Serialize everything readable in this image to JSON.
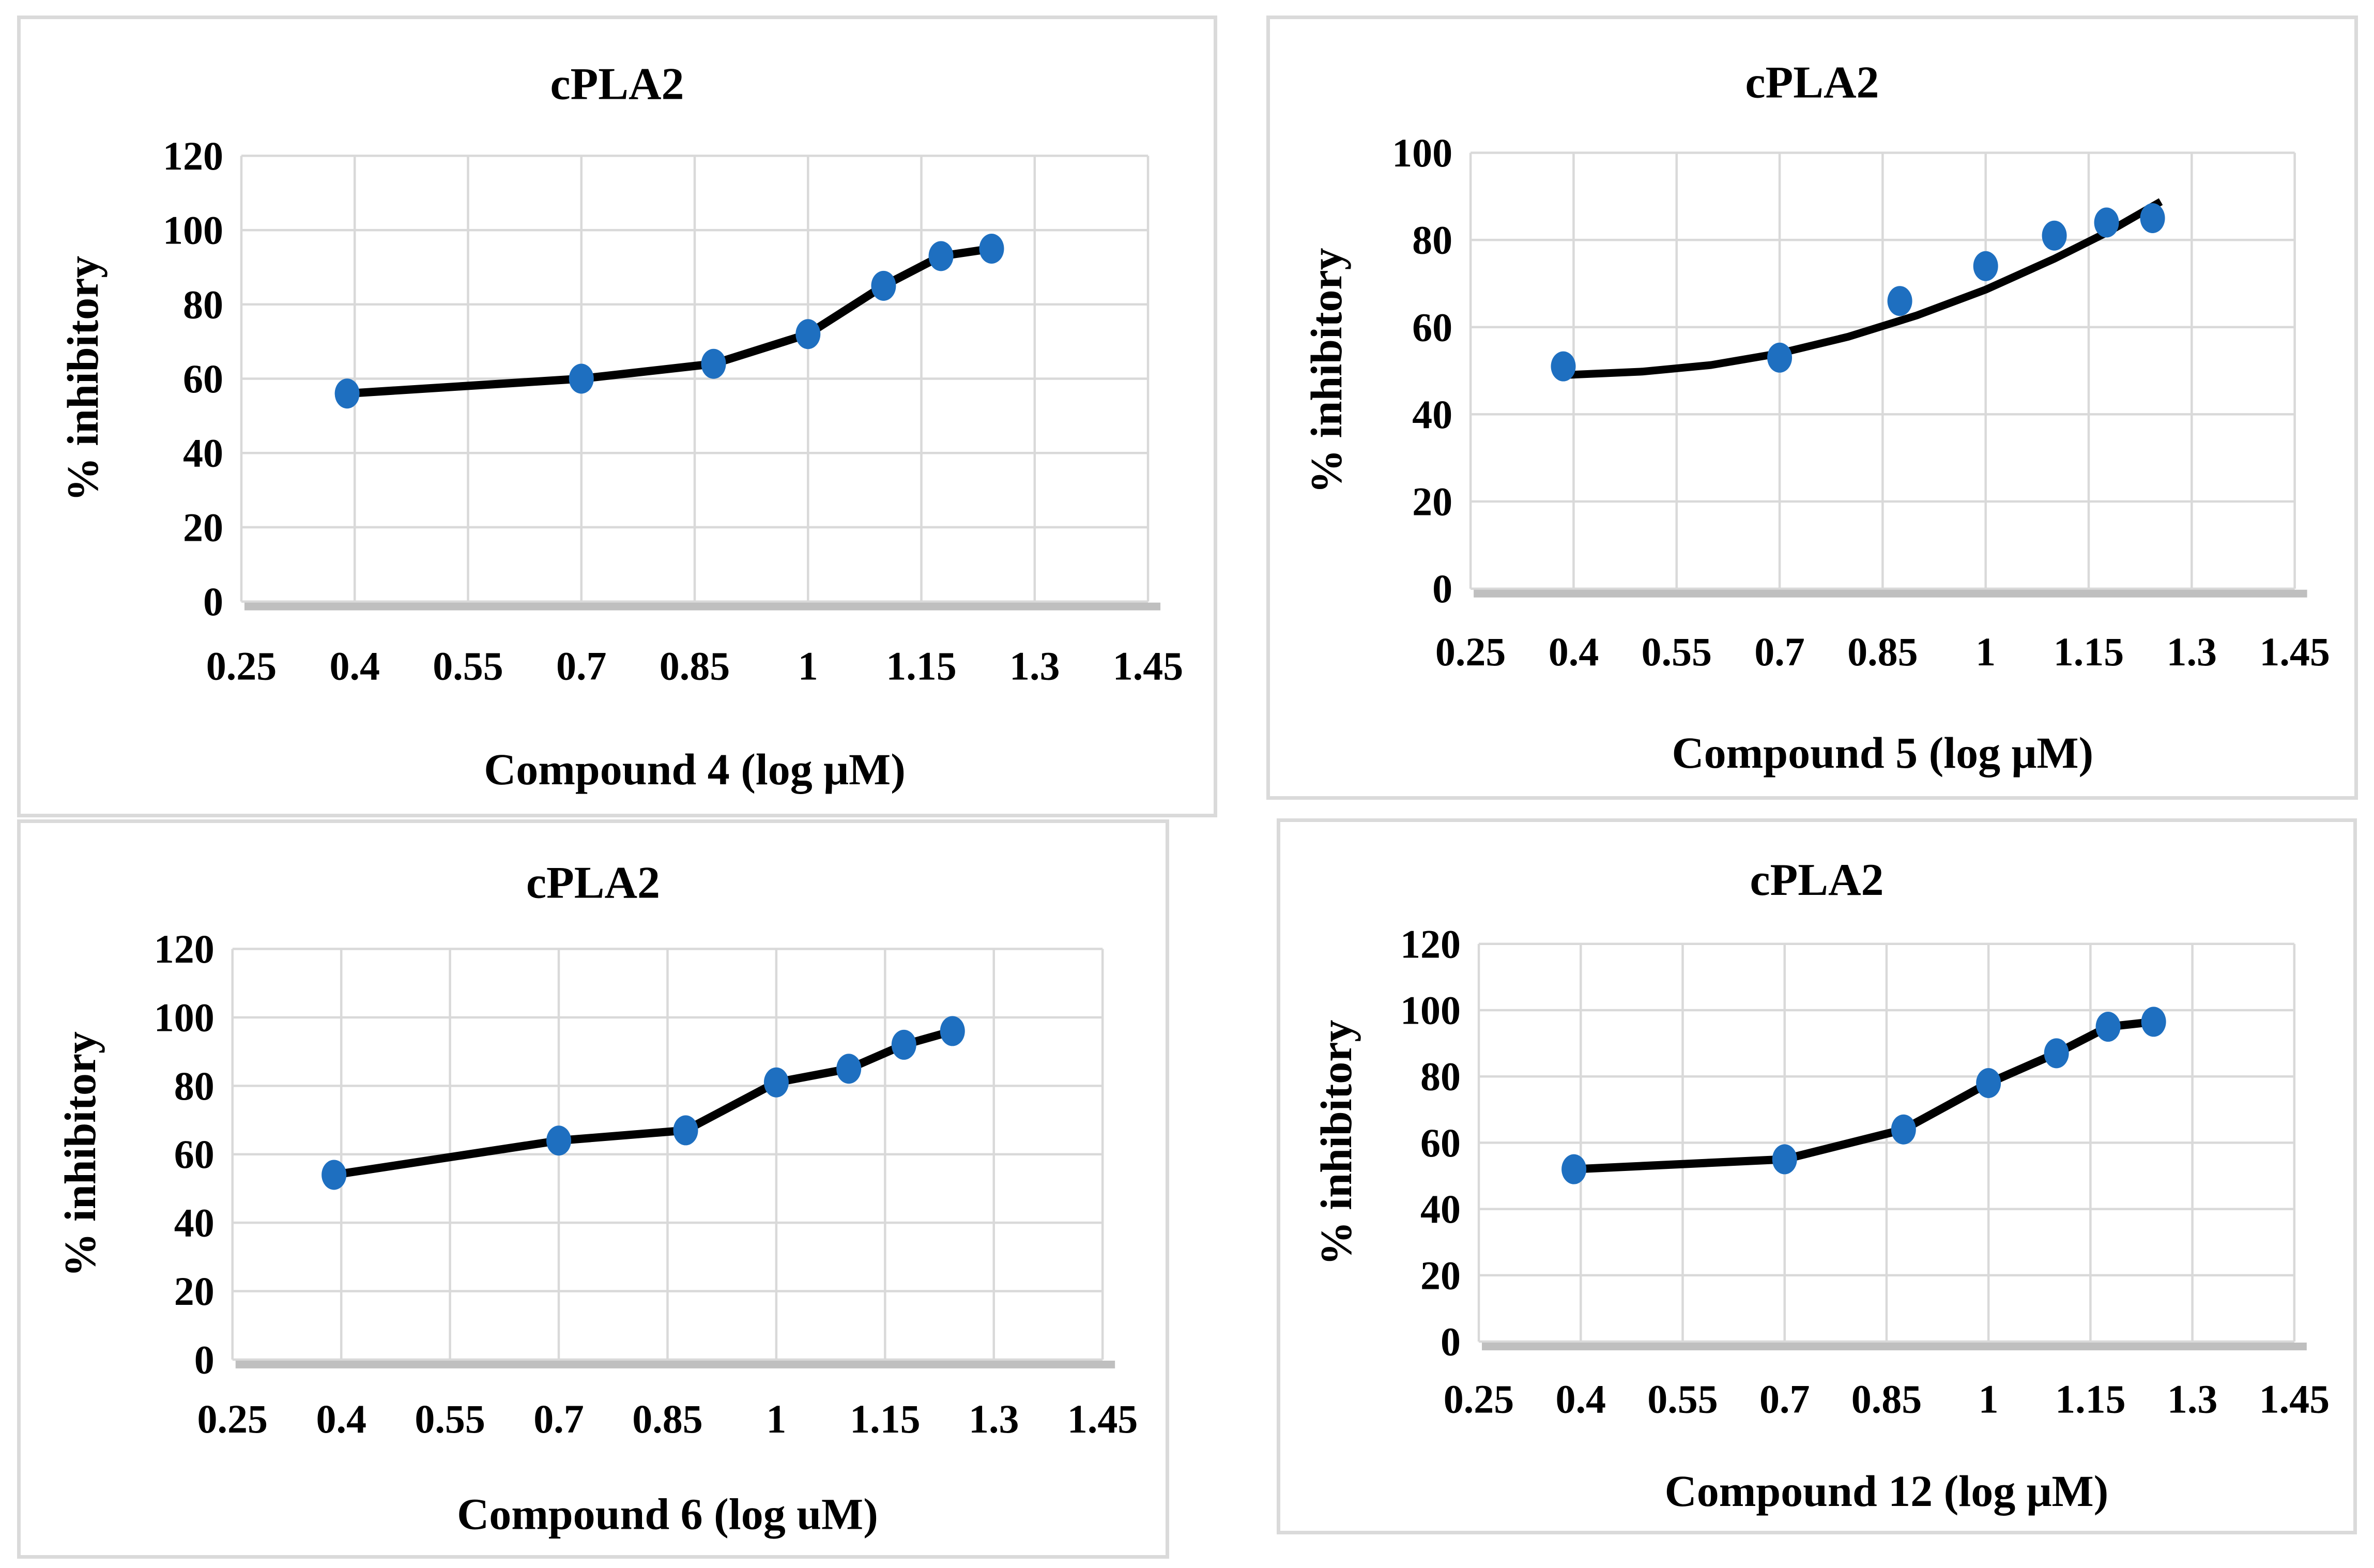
{
  "figure": {
    "background": "#FFFFFF",
    "description_titles": [
      "cPLA2",
      "cPLA2",
      "cPLA2",
      "cPLA2"
    ]
  },
  "styles": {
    "marker_color": "#1E6FC0",
    "line_color": "#000000",
    "grid_color": "#D9D9D9",
    "axis_bar_color": "#BFBFBF",
    "panel_border_color": "#DADADA",
    "text_color": "#000000"
  },
  "chart_data": [
    {
      "id": "compound4",
      "type": "line",
      "title": "cPLA2",
      "xlabel": "Compound 4 (log μM)",
      "ylabel": "% inhibitory",
      "x_ticks": [
        0.25,
        0.4,
        0.55,
        0.7,
        0.85,
        1,
        1.15,
        1.3,
        1.45
      ],
      "x_tick_labels": [
        "0.25",
        "0.4",
        "0.55",
        "0.7",
        "0.85",
        "1",
        "1.15",
        "1.3",
        "1.45"
      ],
      "y_ticks": [
        0,
        20,
        40,
        60,
        80,
        100,
        120
      ],
      "xlim": [
        0.25,
        1.45
      ],
      "ylim": [
        0,
        120
      ],
      "grid": true,
      "legend": "none",
      "curve": "segments",
      "x": [
        0.39,
        0.7,
        0.875,
        1.0,
        1.1,
        1.176,
        1.243
      ],
      "y": [
        56,
        60,
        64,
        72,
        85,
        93,
        95
      ]
    },
    {
      "id": "compound5",
      "type": "scatter",
      "title": "cPLA2",
      "xlabel": "Compound 5 (log μM)",
      "ylabel": "% inhibitory",
      "x_ticks": [
        0.25,
        0.4,
        0.55,
        0.7,
        0.85,
        1,
        1.15,
        1.3,
        1.45
      ],
      "x_tick_labels": [
        "0.25",
        "0.4",
        "0.55",
        "0.7",
        "0.85",
        "1",
        "1.15",
        "1.3",
        "1.45"
      ],
      "y_ticks": [
        0,
        20,
        40,
        60,
        80,
        100
      ],
      "xlim": [
        0.25,
        1.45
      ],
      "ylim": [
        0,
        100
      ],
      "grid": true,
      "legend": "none",
      "curve": "trend",
      "x": [
        0.385,
        0.7,
        0.875,
        1.0,
        1.1,
        1.176,
        1.243
      ],
      "y": [
        51,
        53,
        66,
        74,
        81,
        84,
        85
      ],
      "trend": [
        [
          0.385,
          49
        ],
        [
          0.5,
          49.8
        ],
        [
          0.6,
          51.3
        ],
        [
          0.7,
          54
        ],
        [
          0.8,
          57.8
        ],
        [
          0.9,
          62.7
        ],
        [
          1.0,
          68.6
        ],
        [
          1.1,
          75.7
        ],
        [
          1.18,
          82
        ],
        [
          1.255,
          88.8
        ]
      ]
    },
    {
      "id": "compound6",
      "type": "line",
      "title": "cPLA2",
      "xlabel": "Compound 6 (log uM)",
      "ylabel": "% inhibitory",
      "x_ticks": [
        0.25,
        0.4,
        0.55,
        0.7,
        0.85,
        1,
        1.15,
        1.3,
        1.45
      ],
      "x_tick_labels": [
        "0.25",
        "0.4",
        "0.55",
        "0.7",
        "0.85",
        "1",
        "1.15",
        "1.3",
        "1.45"
      ],
      "y_ticks": [
        0,
        20,
        40,
        60,
        80,
        100,
        120
      ],
      "xlim": [
        0.25,
        1.45
      ],
      "ylim": [
        0,
        120
      ],
      "grid": true,
      "legend": "none",
      "curve": "segments",
      "x": [
        0.39,
        0.7,
        0.875,
        1.0,
        1.1,
        1.176,
        1.243
      ],
      "y": [
        54,
        64,
        67,
        81,
        85,
        92,
        96
      ]
    },
    {
      "id": "compound12",
      "type": "line",
      "title": "cPLA2",
      "xlabel": "Compound 12 (log μM)",
      "ylabel": "% inhibitory",
      "x_ticks": [
        0.25,
        0.4,
        0.55,
        0.7,
        0.85,
        1,
        1.15,
        1.3,
        1.45
      ],
      "x_tick_labels": [
        "0.25",
        "0.4",
        "0.55",
        "0.7",
        "0.85",
        "1",
        "1.15",
        "1.3",
        "1.45"
      ],
      "y_ticks": [
        0,
        20,
        40,
        60,
        80,
        100,
        120
      ],
      "xlim": [
        0.25,
        1.45
      ],
      "ylim": [
        0,
        120
      ],
      "grid": true,
      "legend": "none",
      "curve": "segments",
      "x": [
        0.39,
        0.7,
        0.875,
        1.0,
        1.1,
        1.176,
        1.243
      ],
      "y": [
        52,
        55,
        64,
        78,
        87,
        95,
        96.5
      ]
    }
  ]
}
